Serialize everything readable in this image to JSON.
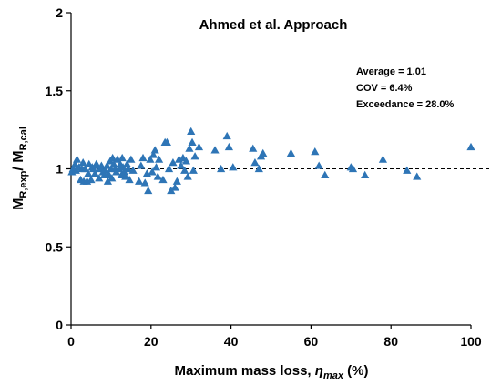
{
  "chart_data": {
    "type": "scatter",
    "title": "Ahmed et al. Approach",
    "xlabel": {
      "main": "Maximum mass loss, ",
      "symbol": "η",
      "sub": "max",
      "unit": " (%)"
    },
    "ylabel": {
      "num_main": "M",
      "num_sub": "R,exp",
      "sep": "/ ",
      "den_main": "M",
      "den_sub": "R,cal"
    },
    "xlim": [
      0,
      100
    ],
    "ylim": [
      0,
      2
    ],
    "xticks": [
      0,
      20,
      40,
      60,
      80,
      100
    ],
    "yticks": [
      0,
      0.5,
      1,
      1.5,
      2
    ],
    "ytick_labels": [
      "0",
      "0.5",
      "1",
      "1.5",
      "2"
    ],
    "grid": false,
    "reference_line": {
      "y": 1,
      "style": "dashed"
    },
    "stats": {
      "average": "Average = 1.01",
      "cov": "COV = 6.4%",
      "exceedance": "Exceedance = 28.0%"
    },
    "marker": {
      "shape": "triangle",
      "color": "#2E75B6"
    },
    "series": [
      {
        "points": [
          [
            0.2,
            0.98
          ],
          [
            0.5,
            1.0
          ],
          [
            1.0,
            1.03
          ],
          [
            1.2,
            0.99
          ],
          [
            1.5,
            1.06
          ],
          [
            2.0,
            1.01
          ],
          [
            2.4,
            0.93
          ],
          [
            2.7,
            1.0
          ],
          [
            3.0,
            1.04
          ],
          [
            3.2,
            0.92
          ],
          [
            3.5,
            1.0
          ],
          [
            4.0,
            0.92
          ],
          [
            4.3,
            0.97
          ],
          [
            4.5,
            1.03
          ],
          [
            5.0,
            0.93
          ],
          [
            5.3,
            1.01
          ],
          [
            5.6,
            1.0
          ],
          [
            6.0,
            0.97
          ],
          [
            6.3,
            1.03
          ],
          [
            6.6,
            1.02
          ],
          [
            7.0,
            0.94
          ],
          [
            7.3,
            1.0
          ],
          [
            7.6,
            1.02
          ],
          [
            8.0,
            0.98
          ],
          [
            8.3,
            0.96
          ],
          [
            8.6,
            0.99
          ],
          [
            9.0,
            1.02
          ],
          [
            9.2,
            0.92
          ],
          [
            9.5,
            0.96
          ],
          [
            9.8,
            1.05
          ],
          [
            10.0,
            1.0
          ],
          [
            10.2,
            0.94
          ],
          [
            10.4,
            1.07
          ],
          [
            10.7,
            1.03
          ],
          [
            11.0,
            1.0
          ],
          [
            11.3,
            0.98
          ],
          [
            11.6,
            1.06
          ],
          [
            12.0,
            1.0
          ],
          [
            12.3,
            1.03
          ],
          [
            12.6,
            0.96
          ],
          [
            12.8,
            1.07
          ],
          [
            13.0,
            1.01
          ],
          [
            13.3,
            0.98
          ],
          [
            13.6,
            0.95
          ],
          [
            14.0,
            1.03
          ],
          [
            14.3,
            1.0
          ],
          [
            14.6,
            0.93
          ],
          [
            15.0,
            1.06
          ],
          [
            15.5,
            0.99
          ],
          [
            17.0,
            0.92
          ],
          [
            17.5,
            1.02
          ],
          [
            18.0,
            1.07
          ],
          [
            18.5,
            0.91
          ],
          [
            19.0,
            0.97
          ],
          [
            19.3,
            0.86
          ],
          [
            19.8,
            1.06
          ],
          [
            20.3,
            0.98
          ],
          [
            20.6,
            1.09
          ],
          [
            21.0,
            1.12
          ],
          [
            21.3,
            1.01
          ],
          [
            21.7,
            0.95
          ],
          [
            22.0,
            1.06
          ],
          [
            23.0,
            0.93
          ],
          [
            23.5,
            1.17
          ],
          [
            24.0,
            1.17
          ],
          [
            24.5,
            1.0
          ],
          [
            25.0,
            0.86
          ],
          [
            25.5,
            1.04
          ],
          [
            26.0,
            0.88
          ],
          [
            26.5,
            0.92
          ],
          [
            27.0,
            1.06
          ],
          [
            27.5,
            1.02
          ],
          [
            28.0,
            1.07
          ],
          [
            28.4,
            0.99
          ],
          [
            28.8,
            1.05
          ],
          [
            29.2,
            0.95
          ],
          [
            29.6,
            1.13
          ],
          [
            30.0,
            1.24
          ],
          [
            30.3,
            1.17
          ],
          [
            30.6,
            0.99
          ],
          [
            31.0,
            1.08
          ],
          [
            32.0,
            1.14
          ],
          [
            36.0,
            1.12
          ],
          [
            37.5,
            1.0
          ],
          [
            39.0,
            1.21
          ],
          [
            39.5,
            1.14
          ],
          [
            40.5,
            1.01
          ],
          [
            45.5,
            1.13
          ],
          [
            46.0,
            1.04
          ],
          [
            47.0,
            1.0
          ],
          [
            47.5,
            1.08
          ],
          [
            48.0,
            1.1
          ],
          [
            55.0,
            1.1
          ],
          [
            61.0,
            1.11
          ],
          [
            62.0,
            1.02
          ],
          [
            63.5,
            0.96
          ],
          [
            70.0,
            1.01
          ],
          [
            70.5,
            1.0
          ],
          [
            73.5,
            0.96
          ],
          [
            78.0,
            1.06
          ],
          [
            84.0,
            0.99
          ],
          [
            86.5,
            0.95
          ],
          [
            100.0,
            1.14
          ]
        ]
      }
    ]
  }
}
